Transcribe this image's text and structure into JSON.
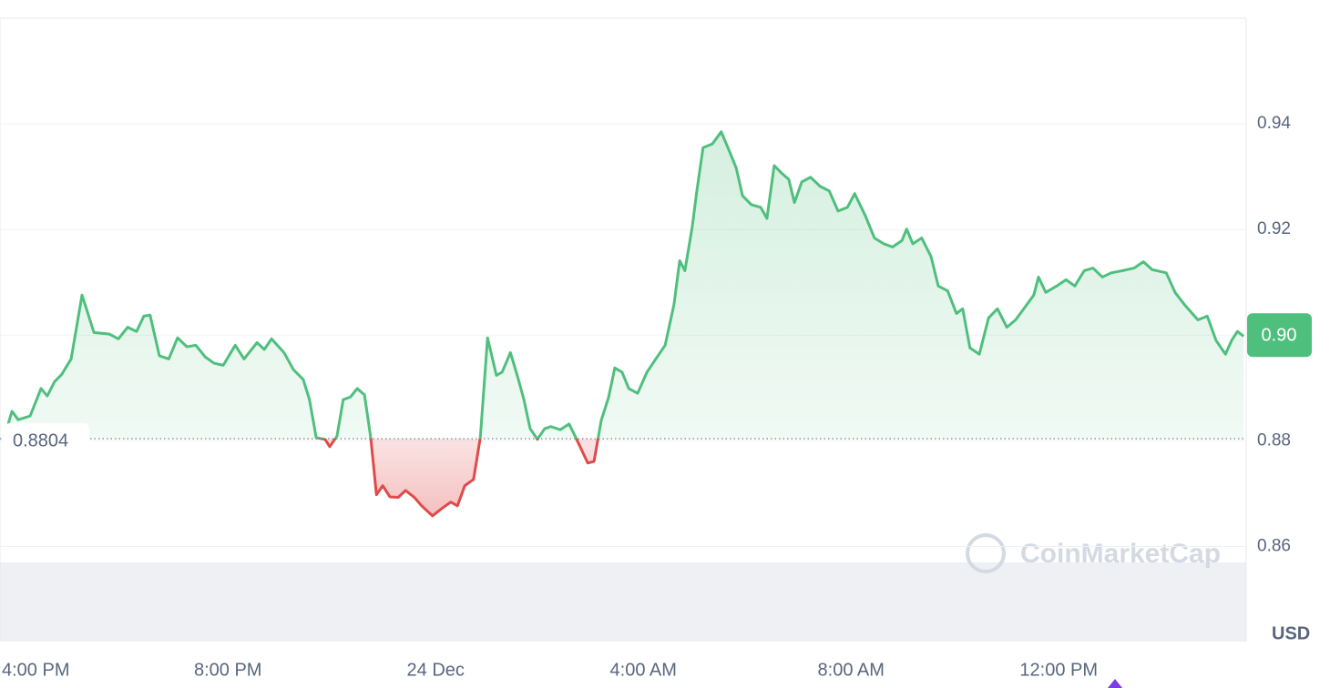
{
  "chart_data": {
    "type": "line",
    "x": [
      15.7,
      15.84,
      15.96,
      16.19,
      16.4,
      16.52,
      16.66,
      16.8,
      16.98,
      17.19,
      17.42,
      17.72,
      17.89,
      18.07,
      18.24,
      18.38,
      18.5,
      18.68,
      18.86,
      19.03,
      19.21,
      19.38,
      19.56,
      19.73,
      19.91,
      20.14,
      20.31,
      20.56,
      20.7,
      20.84,
      21.08,
      21.26,
      21.45,
      21.57,
      21.7,
      21.87,
      21.96,
      22.1,
      22.22,
      22.36,
      22.49,
      22.63,
      22.75,
      22.86,
      22.98,
      23.12,
      23.28,
      23.42,
      23.59,
      23.73,
      23.94,
      24.12,
      24.29,
      24.42,
      24.56,
      24.73,
      24.86,
      25.0,
      25.17,
      25.28,
      25.44,
      25.58,
      25.7,
      25.82,
      25.96,
      26.1,
      26.22,
      26.4,
      26.57,
      26.7,
      26.93,
      27.05,
      27.19,
      27.33,
      27.45,
      27.59,
      27.72,
      27.89,
      28.07,
      28.24,
      28.42,
      28.59,
      28.7,
      28.8,
      28.94,
      29.03,
      29.15,
      29.33,
      29.5,
      29.65,
      29.79,
      29.91,
      30.08,
      30.26,
      30.38,
      30.52,
      30.66,
      30.8,
      30.91,
      31.05,
      31.22,
      31.4,
      31.58,
      31.75,
      31.93,
      32.07,
      32.28,
      32.45,
      32.63,
      32.8,
      32.98,
      33.07,
      33.19,
      33.36,
      33.54,
      33.68,
      33.86,
      34.03,
      34.15,
      34.29,
      34.47,
      34.65,
      34.82,
      35.0,
      35.17,
      35.35,
      35.52,
      35.61,
      35.75,
      35.96,
      36.14,
      36.31,
      36.49,
      36.66,
      36.84,
      37.01,
      37.22,
      37.45,
      37.63,
      37.8,
      38.07,
      38.24,
      38.42,
      38.68,
      38.86,
      39.03,
      39.21,
      39.33,
      39.44,
      39.56
    ],
    "values": [
      0.8809,
      0.8856,
      0.884,
      0.8847,
      0.8899,
      0.8885,
      0.8912,
      0.8926,
      0.8955,
      0.9076,
      0.9005,
      0.9002,
      0.8993,
      0.9015,
      0.9007,
      0.9036,
      0.9038,
      0.8961,
      0.8955,
      0.8995,
      0.8978,
      0.8981,
      0.8959,
      0.8947,
      0.8943,
      0.8981,
      0.8955,
      0.8986,
      0.8973,
      0.8993,
      0.8967,
      0.8935,
      0.8916,
      0.8878,
      0.8806,
      0.8803,
      0.8789,
      0.8809,
      0.8878,
      0.8883,
      0.8899,
      0.8887,
      0.8806,
      0.8698,
      0.8715,
      0.8694,
      0.8693,
      0.8706,
      0.8693,
      0.8677,
      0.8658,
      0.8672,
      0.8684,
      0.8677,
      0.8715,
      0.8727,
      0.8806,
      0.8995,
      0.8924,
      0.893,
      0.8967,
      0.8921,
      0.8878,
      0.8823,
      0.8803,
      0.8823,
      0.8827,
      0.8821,
      0.8832,
      0.8806,
      0.8758,
      0.8761,
      0.8839,
      0.8882,
      0.8938,
      0.893,
      0.8899,
      0.889,
      0.893,
      0.8955,
      0.8981,
      0.9058,
      0.9141,
      0.9122,
      0.9204,
      0.9273,
      0.9355,
      0.9362,
      0.9385,
      0.935,
      0.9316,
      0.9264,
      0.9247,
      0.9242,
      0.9221,
      0.9321,
      0.9307,
      0.9295,
      0.9251,
      0.929,
      0.9299,
      0.9282,
      0.9273,
      0.9235,
      0.9242,
      0.9268,
      0.9225,
      0.9184,
      0.9173,
      0.9167,
      0.9179,
      0.9201,
      0.9173,
      0.9184,
      0.9149,
      0.9093,
      0.9084,
      0.9041,
      0.905,
      0.8976,
      0.8964,
      0.9033,
      0.905,
      0.9015,
      0.9029,
      0.9053,
      0.9076,
      0.911,
      0.9081,
      0.9093,
      0.9105,
      0.9093,
      0.9122,
      0.9127,
      0.911,
      0.9118,
      0.9122,
      0.9127,
      0.9139,
      0.9124,
      0.9118,
      0.9081,
      0.9058,
      0.9029,
      0.9036,
      0.899,
      0.8964,
      0.899,
      0.9007,
      0.8998
    ],
    "xlim": [
      15.61,
      39.61
    ],
    "xticks": [
      {
        "value": 16,
        "label": "4:00 PM"
      },
      {
        "value": 20,
        "label": "8:00 PM"
      },
      {
        "value": 24,
        "label": "24 Dec"
      },
      {
        "value": 28,
        "label": "4:00 AM"
      },
      {
        "value": 32,
        "label": "8:00 AM"
      },
      {
        "value": 36,
        "label": "12:00 PM"
      }
    ],
    "ylim": [
      0.842,
      0.96
    ],
    "yticks": [
      0.86,
      0.88,
      {
        "value": 0.9,
        "label": "0.90"
      },
      0.92,
      0.94
    ],
    "baseline": 0.8804,
    "current_price": {
      "value": 0.9,
      "label": "0.90"
    },
    "y_axis_label": "USD",
    "watermark": "CoinMarketCap",
    "up_color": "#4fbf7d",
    "down_color": "#e04a4a",
    "grid": true
  }
}
